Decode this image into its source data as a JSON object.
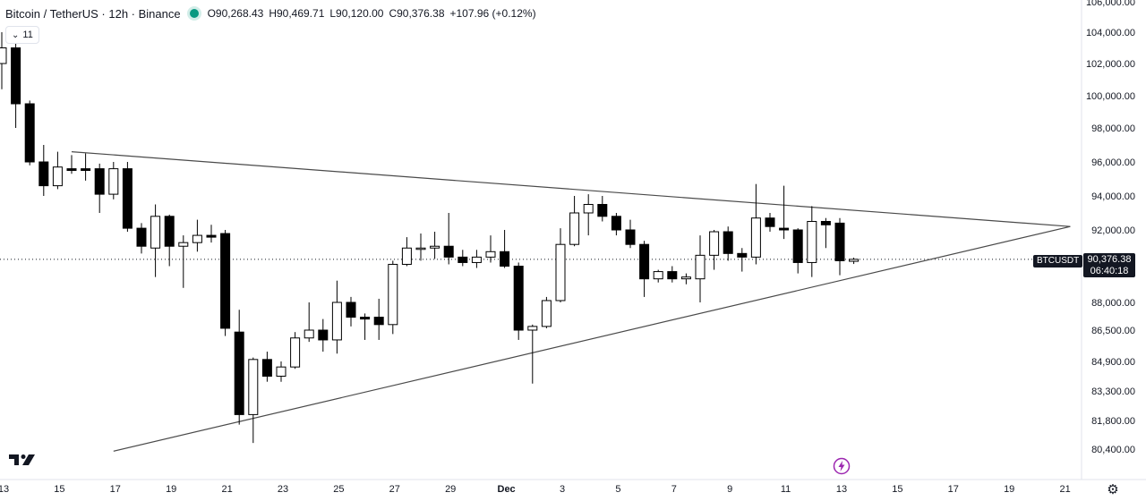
{
  "header": {
    "title": "Bitcoin / TetherUS · 12h · Binance",
    "open": "O90,268.43",
    "high": "H90,469.71",
    "low": "L90,120.00",
    "close": "C90,376.38",
    "change": "+107.96 (+0.12%)",
    "indicator_count": "11",
    "status_color": "#089981"
  },
  "price_label": {
    "symbol": "BTCUSDT",
    "price": "90,376.38",
    "countdown": "06:40:18"
  },
  "chart_data": {
    "type": "candlestick",
    "title": "Bitcoin / TetherUS · 12h · Binance",
    "y_ticks": [
      80400,
      81800,
      83300,
      84900,
      86500,
      88000,
      92000,
      94000,
      96000,
      98000,
      100000,
      102000,
      104000,
      106000
    ],
    "y_tick_labels": [
      "80,400.00",
      "81,800.00",
      "83,300.00",
      "84,900.00",
      "86,500.00",
      "88,000.00",
      "92,000.00",
      "94,000.00",
      "96,000.00",
      "98,000.00",
      "100,000.00",
      "102,000.00",
      "104,000.00",
      "106,000.00"
    ],
    "x_ticks": [
      {
        "idx": 0,
        "label": "13"
      },
      {
        "idx": 4,
        "label": "15"
      },
      {
        "idx": 8,
        "label": "17"
      },
      {
        "idx": 12,
        "label": "19"
      },
      {
        "idx": 16,
        "label": "21"
      },
      {
        "idx": 20,
        "label": "23"
      },
      {
        "idx": 24,
        "label": "25"
      },
      {
        "idx": 28,
        "label": "27"
      },
      {
        "idx": 32,
        "label": "29"
      },
      {
        "idx": 36,
        "label": "Dec"
      },
      {
        "idx": 40,
        "label": "3"
      },
      {
        "idx": 44,
        "label": "5"
      },
      {
        "idx": 48,
        "label": "7"
      },
      {
        "idx": 52,
        "label": "9"
      },
      {
        "idx": 56,
        "label": "11"
      },
      {
        "idx": 60,
        "label": "13"
      },
      {
        "idx": 64,
        "label": "15"
      },
      {
        "idx": 68,
        "label": "17"
      },
      {
        "idx": 72,
        "label": "19"
      },
      {
        "idx": 76,
        "label": "21"
      }
    ],
    "up_color": "#ffffff",
    "down_color": "#000000",
    "current_price": 90376.38,
    "candles": [
      {
        "o": 102000,
        "h": 104000,
        "l": 100400,
        "c": 103000
      },
      {
        "o": 103000,
        "h": 103600,
        "l": 98000,
        "c": 99500
      },
      {
        "o": 99500,
        "h": 99700,
        "l": 95800,
        "c": 96000
      },
      {
        "o": 96000,
        "h": 97000,
        "l": 94000,
        "c": 94600
      },
      {
        "o": 94600,
        "h": 96600,
        "l": 94400,
        "c": 95700
      },
      {
        "o": 95600,
        "h": 96400,
        "l": 95300,
        "c": 95500
      },
      {
        "o": 95600,
        "h": 96500,
        "l": 94900,
        "c": 95500
      },
      {
        "o": 95600,
        "h": 95900,
        "l": 93000,
        "c": 94100
      },
      {
        "o": 94100,
        "h": 96000,
        "l": 93800,
        "c": 95600
      },
      {
        "o": 95600,
        "h": 96000,
        "l": 91900,
        "c": 92100
      },
      {
        "o": 92100,
        "h": 92400,
        "l": 90700,
        "c": 91100
      },
      {
        "o": 91000,
        "h": 93500,
        "l": 89400,
        "c": 92800
      },
      {
        "o": 92800,
        "h": 92900,
        "l": 90000,
        "c": 91100
      },
      {
        "o": 91100,
        "h": 91700,
        "l": 88800,
        "c": 91300
      },
      {
        "o": 91300,
        "h": 92600,
        "l": 90800,
        "c": 91700
      },
      {
        "o": 91700,
        "h": 92300,
        "l": 91300,
        "c": 91600
      },
      {
        "o": 91800,
        "h": 92000,
        "l": 86200,
        "c": 86600
      },
      {
        "o": 86400,
        "h": 87600,
        "l": 81600,
        "c": 82100
      },
      {
        "o": 82100,
        "h": 85100,
        "l": 80700,
        "c": 85000
      },
      {
        "o": 85000,
        "h": 85400,
        "l": 83800,
        "c": 84100
      },
      {
        "o": 84100,
        "h": 84900,
        "l": 83800,
        "c": 84600
      },
      {
        "o": 84600,
        "h": 86400,
        "l": 84500,
        "c": 86100
      },
      {
        "o": 86100,
        "h": 88000,
        "l": 85900,
        "c": 86500
      },
      {
        "o": 86500,
        "h": 87100,
        "l": 85400,
        "c": 86000
      },
      {
        "o": 86000,
        "h": 89200,
        "l": 85300,
        "c": 88000
      },
      {
        "o": 88000,
        "h": 88300,
        "l": 86700,
        "c": 87200
      },
      {
        "o": 87200,
        "h": 87400,
        "l": 86000,
        "c": 87100
      },
      {
        "o": 87200,
        "h": 88200,
        "l": 86000,
        "c": 86800
      },
      {
        "o": 86800,
        "h": 90300,
        "l": 86300,
        "c": 90100
      },
      {
        "o": 90100,
        "h": 91600,
        "l": 90000,
        "c": 91000
      },
      {
        "o": 91000,
        "h": 91800,
        "l": 90300,
        "c": 91000
      },
      {
        "o": 91000,
        "h": 91900,
        "l": 90400,
        "c": 91100
      },
      {
        "o": 91100,
        "h": 93000,
        "l": 90100,
        "c": 90500
      },
      {
        "o": 90500,
        "h": 90900,
        "l": 90000,
        "c": 90200
      },
      {
        "o": 90200,
        "h": 90900,
        "l": 89900,
        "c": 90500
      },
      {
        "o": 90500,
        "h": 91700,
        "l": 90200,
        "c": 90800
      },
      {
        "o": 90800,
        "h": 92000,
        "l": 89900,
        "c": 90000
      },
      {
        "o": 90000,
        "h": 90200,
        "l": 86000,
        "c": 86500
      },
      {
        "o": 86500,
        "h": 86800,
        "l": 83700,
        "c": 86700
      },
      {
        "o": 86700,
        "h": 88300,
        "l": 86600,
        "c": 88100
      },
      {
        "o": 88100,
        "h": 92100,
        "l": 88000,
        "c": 91200
      },
      {
        "o": 91200,
        "h": 94000,
        "l": 91100,
        "c": 93000
      },
      {
        "o": 93000,
        "h": 94100,
        "l": 91700,
        "c": 93500
      },
      {
        "o": 93500,
        "h": 94000,
        "l": 92500,
        "c": 92800
      },
      {
        "o": 92800,
        "h": 93000,
        "l": 91700,
        "c": 92000
      },
      {
        "o": 92000,
        "h": 92600,
        "l": 91000,
        "c": 91200
      },
      {
        "o": 91200,
        "h": 91400,
        "l": 88300,
        "c": 89300
      },
      {
        "o": 89300,
        "h": 89800,
        "l": 89100,
        "c": 89700
      },
      {
        "o": 89700,
        "h": 90000,
        "l": 89100,
        "c": 89300
      },
      {
        "o": 89300,
        "h": 89600,
        "l": 89000,
        "c": 89400
      },
      {
        "o": 89300,
        "h": 91700,
        "l": 88000,
        "c": 90600
      },
      {
        "o": 90600,
        "h": 92000,
        "l": 89800,
        "c": 91900
      },
      {
        "o": 91900,
        "h": 92200,
        "l": 90300,
        "c": 90700
      },
      {
        "o": 90700,
        "h": 91000,
        "l": 89700,
        "c": 90500
      },
      {
        "o": 90500,
        "h": 94700,
        "l": 90100,
        "c": 92700
      },
      {
        "o": 92700,
        "h": 93000,
        "l": 91900,
        "c": 92200
      },
      {
        "o": 92100,
        "h": 94600,
        "l": 91500,
        "c": 92000
      },
      {
        "o": 92000,
        "h": 92100,
        "l": 89600,
        "c": 90200
      },
      {
        "o": 90200,
        "h": 93400,
        "l": 89400,
        "c": 92500
      },
      {
        "o": 92500,
        "h": 92700,
        "l": 91000,
        "c": 92300
      },
      {
        "o": 92400,
        "h": 92700,
        "l": 89500,
        "c": 90300
      },
      {
        "o": 90268.43,
        "h": 90469.71,
        "l": 90120,
        "c": 90376.38
      }
    ],
    "trendlines": [
      {
        "x1": 5,
        "y1": 96600,
        "x2": 76.5,
        "y2": 92200
      },
      {
        "x1": 8,
        "y1": 80300,
        "x2": 76.5,
        "y2": 92200
      }
    ]
  }
}
